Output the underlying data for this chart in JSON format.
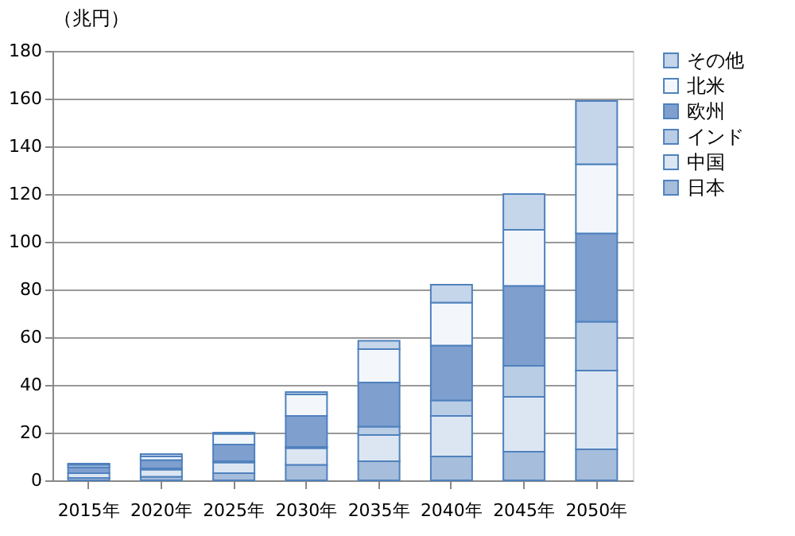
{
  "chart_data": {
    "type": "bar",
    "stacked": true,
    "ylabel": "（兆円）",
    "categories": [
      "2015年",
      "2020年",
      "2025年",
      "2030年",
      "2035年",
      "2040年",
      "2045年",
      "2050年"
    ],
    "series": [
      {
        "name": "日本",
        "color": "#a6bddb",
        "values": [
          1,
          1.5,
          3,
          6.5,
          8,
          10,
          12,
          13
        ]
      },
      {
        "name": "中国",
        "color": "#dce6f2",
        "values": [
          2,
          3,
          4.5,
          7,
          11,
          17,
          23,
          33
        ]
      },
      {
        "name": "インド",
        "color": "#b9cde5",
        "values": [
          null,
          0.5,
          0.5,
          0.5,
          3.5,
          6.5,
          13,
          20.5
        ]
      },
      {
        "name": "欧州",
        "color": "#7f9fcf",
        "values": [
          2.5,
          3.5,
          7,
          13,
          18.5,
          23,
          33.5,
          37
        ]
      },
      {
        "name": "北米",
        "color": "#f3f7fc",
        "values": [
          1,
          1.5,
          4.5,
          9,
          14,
          18,
          23.5,
          29
        ]
      },
      {
        "name": "その他",
        "color": "#c5d5ea",
        "values": [
          0.5,
          1,
          0.5,
          1,
          3.5,
          7.5,
          15,
          26.5
        ]
      }
    ],
    "ylim": [
      0,
      180
    ],
    "yticks": [
      0,
      20,
      40,
      60,
      80,
      100,
      120,
      140,
      160,
      180
    ],
    "grid": "y",
    "legend": "right"
  }
}
